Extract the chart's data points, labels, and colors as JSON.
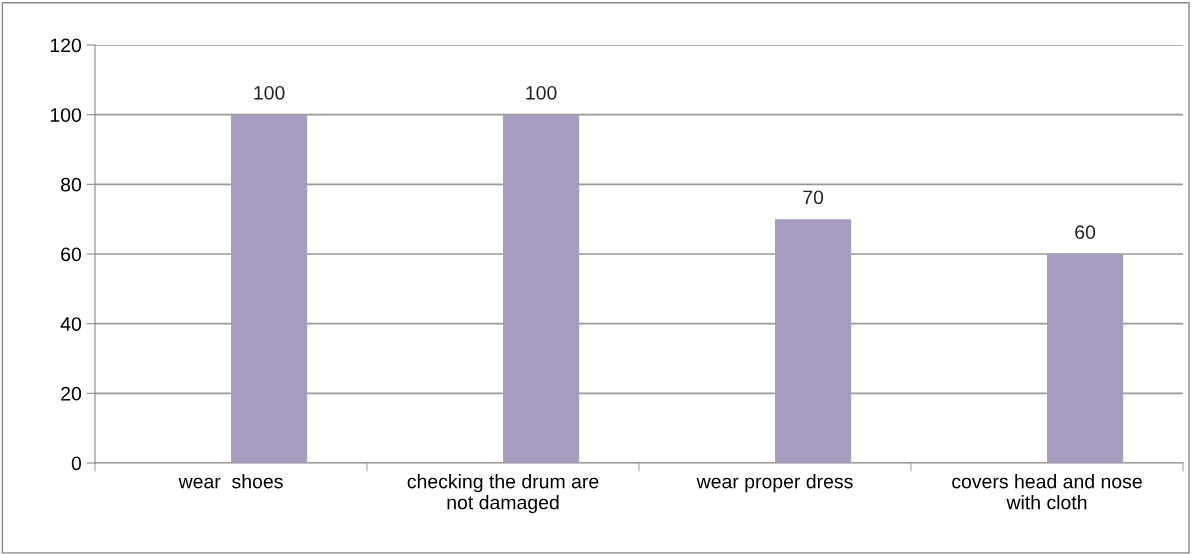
{
  "chart_data": {
    "type": "bar",
    "categories": [
      "wear  shoes",
      "checking the drum are\nnot damaged",
      "wear proper dress",
      "covers head and nose\nwith cloth"
    ],
    "values": [
      100,
      100,
      70,
      60
    ],
    "color": "#a89bc0",
    "ylim": [
      0,
      120
    ],
    "yticks": [
      0,
      20,
      40,
      60,
      80,
      100,
      120
    ],
    "grid": "y",
    "data_labels": true,
    "legend": false
  }
}
